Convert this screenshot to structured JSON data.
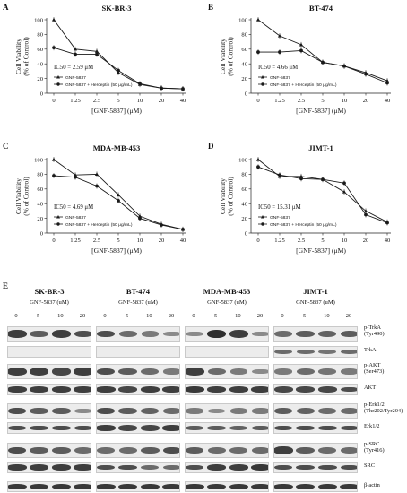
{
  "figure": {
    "panel_letters": [
      "A",
      "B",
      "C",
      "D",
      "E"
    ]
  },
  "chart_data": [
    {
      "type": "line",
      "title": "SK-BR-3",
      "xlabel": "[GNF-5837] (μM)",
      "ylabel": "Cell Viability (% of Control)",
      "ylabel_lines": [
        "Cell Viability",
        "(% of Control)"
      ],
      "categories": [
        "0",
        "1.25",
        "2.5",
        "5",
        "10",
        "20",
        "40"
      ],
      "y_ticks": [
        "0",
        "20",
        "40",
        "60",
        "80",
        "100"
      ],
      "ylim": [
        0,
        100
      ],
      "annotation": "IC50 = 2.59 μM",
      "series": [
        {
          "name": "GNF-5837",
          "marker": "triangle",
          "values": [
            100,
            60,
            57,
            28,
            12,
            7,
            6
          ]
        },
        {
          "name": "GNF-5837 + Herceptin (50 μg/mL)",
          "marker": "circle",
          "values": [
            62,
            53,
            53,
            31,
            13,
            7,
            6
          ]
        }
      ]
    },
    {
      "type": "line",
      "title": "BT-474",
      "xlabel": "[GNF-5837] (μM)",
      "ylabel": "Cell Viability (% of Control)",
      "ylabel_lines": [
        "Cell Viability",
        "(% of Control)"
      ],
      "categories": [
        "0",
        "1.25",
        "2.5",
        "5",
        "10",
        "20",
        "40"
      ],
      "y_ticks": [
        "0",
        "20",
        "40",
        "60",
        "80",
        "100"
      ],
      "ylim": [
        0,
        100
      ],
      "annotation": "IC50 = 4.66 μM",
      "series": [
        {
          "name": "GNF-5837",
          "marker": "triangle",
          "values": [
            100,
            78,
            66,
            42,
            37,
            28,
            17
          ]
        },
        {
          "name": "GNF-5837 + Herceptin (50 μg/mL)",
          "marker": "circle",
          "values": [
            56,
            56,
            58,
            42,
            37,
            26,
            14
          ]
        }
      ]
    },
    {
      "type": "line",
      "title": "MDA-MB-453",
      "xlabel": "[GNF-5837] (μM)",
      "ylabel": "Cell Viability (% of Control)",
      "ylabel_lines": [
        "Cell Viability",
        "(% of Control)"
      ],
      "categories": [
        "0",
        "1.25",
        "2.5",
        "5",
        "10",
        "20",
        "40"
      ],
      "y_ticks": [
        "0",
        "20",
        "40",
        "60",
        "80",
        "100"
      ],
      "ylim": [
        0,
        100
      ],
      "annotation": "IC50 = 4.69 μM",
      "series": [
        {
          "name": "GNF-5837",
          "marker": "triangle",
          "values": [
            100,
            79,
            80,
            52,
            23,
            12,
            5
          ]
        },
        {
          "name": "GNF-5837 + Herceptin (50 μg/mL)",
          "marker": "circle",
          "values": [
            78,
            76,
            64,
            44,
            20,
            11,
            5
          ]
        }
      ]
    },
    {
      "type": "line",
      "title": "JIMT-1",
      "xlabel": "[GNF-5837] (μM)",
      "ylabel": "Cell Viability (% of Control)",
      "ylabel_lines": [
        "Cell Viability",
        "(% of Control)"
      ],
      "categories": [
        "0",
        "1.25",
        "2.5",
        "5",
        "10",
        "20",
        "40"
      ],
      "y_ticks": [
        "0",
        "20",
        "40",
        "60",
        "80",
        "100"
      ],
      "ylim": [
        0,
        100
      ],
      "annotation": "IC50 = 15.31 μM",
      "series": [
        {
          "name": "GNF-5837",
          "marker": "triangle",
          "values": [
            100,
            77,
            77,
            73,
            56,
            30,
            15
          ]
        },
        {
          "name": "GNF-5837 + Herceptin (50 μg/mL)",
          "marker": "circle",
          "values": [
            90,
            79,
            74,
            73,
            68,
            25,
            14
          ]
        }
      ]
    }
  ],
  "western": {
    "cell_lines": [
      "SK-BR-3",
      "BT-474",
      "MDA-MB-453",
      "JIMT-1"
    ],
    "treatment_label": "GNF-5837 (uM)",
    "doses": [
      "0",
      "5",
      "10",
      "20"
    ],
    "protein_labels": [
      [
        "p-TrkA",
        "(Tyr490)"
      ],
      [
        "TrkA"
      ],
      [
        "p-AKT",
        "(Ser473)"
      ],
      [
        "AKT"
      ],
      [
        "p-Erk1/2",
        "(Thr202/Tyr204)"
      ],
      [
        "Erk1/2"
      ],
      [
        "p-SRC",
        "(Tyr416)"
      ],
      [
        "SRC"
      ],
      [
        "β-actin"
      ]
    ],
    "band_intensity": [
      [
        [
          0.8,
          0.6,
          0.8,
          0.7
        ],
        [
          0.7,
          0.5,
          0.4,
          0.3
        ],
        [
          0.3,
          0.9,
          0.8,
          0.3
        ],
        [
          0.5,
          0.6,
          0.55,
          0.6
        ]
      ],
      [
        [
          0,
          0,
          0,
          0
        ],
        [
          0,
          0,
          0,
          0
        ],
        [
          0,
          0,
          0,
          0
        ],
        [
          0.5,
          0.5,
          0.45,
          0.5
        ]
      ],
      [
        [
          0.8,
          0.8,
          0.75,
          0.8
        ],
        [
          0.7,
          0.6,
          0.5,
          0.4
        ],
        [
          0.8,
          0.5,
          0.4,
          0.3
        ],
        [
          0.4,
          0.5,
          0.45,
          0.4
        ]
      ],
      [
        [
          0.8,
          0.8,
          0.8,
          0.8
        ],
        [
          0.8,
          0.75,
          0.8,
          0.8
        ],
        [
          0.85,
          0.8,
          0.8,
          0.8
        ],
        [
          0.75,
          0.75,
          0.75,
          0.7
        ]
      ],
      [
        [
          0.7,
          0.6,
          0.6,
          0.3
        ],
        [
          0.7,
          0.6,
          0.55,
          0.5
        ],
        [
          0.4,
          0.3,
          0.4,
          0.4
        ],
        [
          0.6,
          0.55,
          0.5,
          0.5
        ]
      ],
      [
        [
          0.7,
          0.7,
          0.7,
          0.7
        ],
        [
          0.8,
          0.75,
          0.75,
          0.8
        ],
        [
          0.6,
          0.6,
          0.55,
          0.6
        ],
        [
          0.7,
          0.7,
          0.7,
          0.7
        ]
      ],
      [
        [
          0.7,
          0.6,
          0.6,
          0.5
        ],
        [
          0.5,
          0.5,
          0.6,
          0.7
        ],
        [
          0.6,
          0.5,
          0.5,
          0.5
        ],
        [
          0.8,
          0.6,
          0.5,
          0.5
        ]
      ],
      [
        [
          0.8,
          0.8,
          0.8,
          0.8
        ],
        [
          0.7,
          0.7,
          0.5,
          0.5
        ],
        [
          0.7,
          0.8,
          0.8,
          0.85
        ],
        [
          0.7,
          0.7,
          0.7,
          0.7
        ]
      ],
      [
        [
          0.85,
          0.85,
          0.85,
          0.85
        ],
        [
          0.85,
          0.85,
          0.85,
          0.85
        ],
        [
          0.85,
          0.85,
          0.85,
          0.85
        ],
        [
          0.85,
          0.85,
          0.85,
          0.85
        ]
      ]
    ]
  },
  "colors": {
    "line": "#1a1a1a",
    "band": "#151515",
    "blot_bg": "#ececec"
  }
}
